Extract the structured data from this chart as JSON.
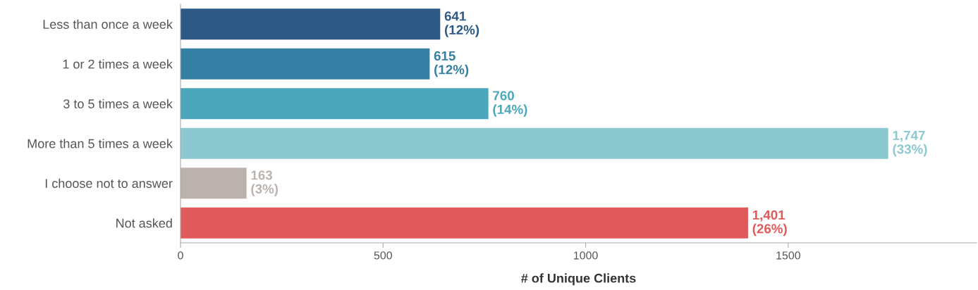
{
  "chart_data": {
    "type": "bar",
    "orientation": "horizontal",
    "categories": [
      "Less than once a week",
      "1 or 2 times a week",
      "3 to 5 times a week",
      "More than 5 times a week",
      "I choose not to answer",
      "Not asked"
    ],
    "values": [
      641,
      615,
      760,
      1747,
      163,
      1401
    ],
    "colors": [
      "#2d5986",
      "#347fa3",
      "#4ba8bc",
      "#8cc8cf",
      "#bbb2ad",
      "#e05a5b"
    ],
    "value_labels": [
      "641\n(12%)",
      "615\n(12%)",
      "760\n(14%)",
      "1,747\n(33%)",
      "163\n(3%)",
      "1,401\n(26%)"
    ],
    "xlabel": "# of Unique Clients",
    "xlim": [
      0,
      1965
    ],
    "xticks": [
      0,
      500,
      1000,
      1500
    ],
    "grid": false
  }
}
